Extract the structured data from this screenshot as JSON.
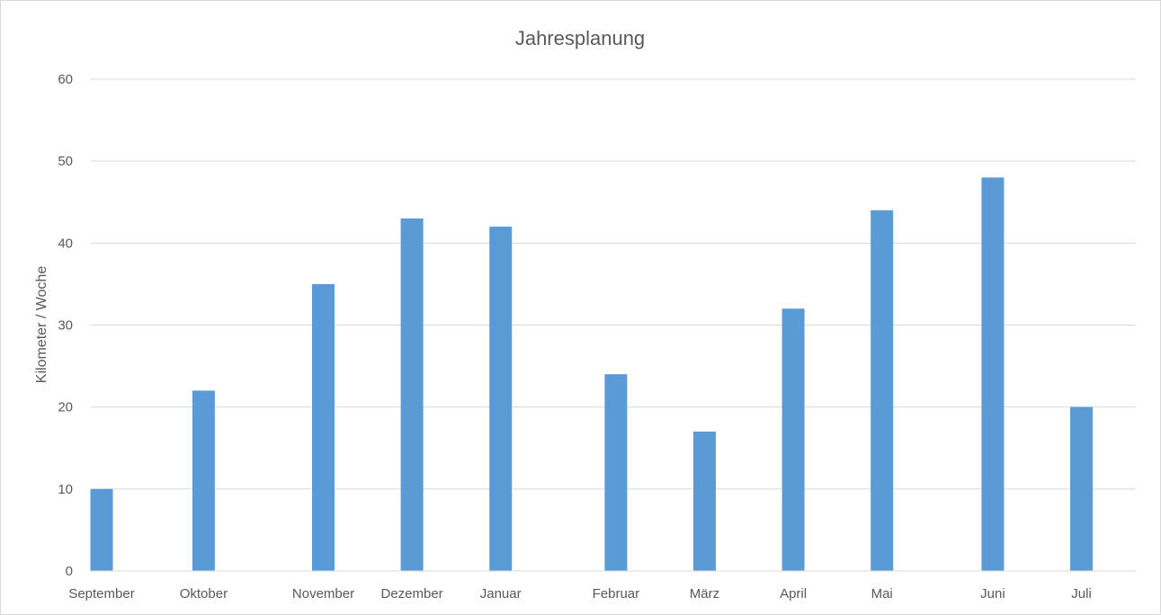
{
  "chart_data": {
    "type": "bar",
    "title": "Jahresplanung",
    "xlabel": "",
    "ylabel": "Kilometer / Woche",
    "categories": [
      "September",
      "Oktober",
      "November",
      "Dezember",
      "Januar",
      "Februar",
      "März",
      "April",
      "Mai",
      "Juni",
      "Juli"
    ],
    "x": [
      0,
      1.15,
      2.5,
      3.5,
      4.5,
      5.8,
      6.8,
      7.8,
      8.8,
      10.05,
      11.05
    ],
    "values": [
      10,
      22,
      35,
      43,
      42,
      24,
      17,
      32,
      44,
      48,
      20
    ],
    "ylim": [
      0,
      60
    ],
    "yticks": [
      0,
      10,
      20,
      30,
      40,
      50,
      60
    ],
    "grid": true,
    "legend": "none",
    "bar_color": "#5b9bd5"
  }
}
